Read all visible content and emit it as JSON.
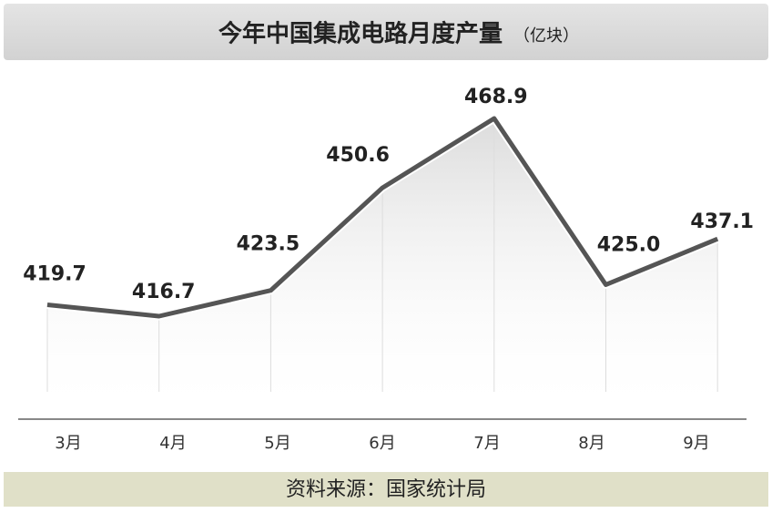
{
  "chart_data": {
    "type": "line",
    "title": "今年中国集成电路月度产量",
    "unit": "（亿块）",
    "categories": [
      "3月",
      "4月",
      "5月",
      "6月",
      "7月",
      "8月",
      "9月"
    ],
    "series": [
      {
        "color": "#555555",
        "values": [
          419.7,
          416.7,
          423.5,
          450.6,
          468.9,
          425,
          437.1
        ],
        "value_labels": [
          "419.7",
          "416.7",
          "423.5",
          "450.6",
          "468.9",
          "425.0",
          "437.1"
        ]
      }
    ],
    "source": "资料来源：国家统计局"
  }
}
